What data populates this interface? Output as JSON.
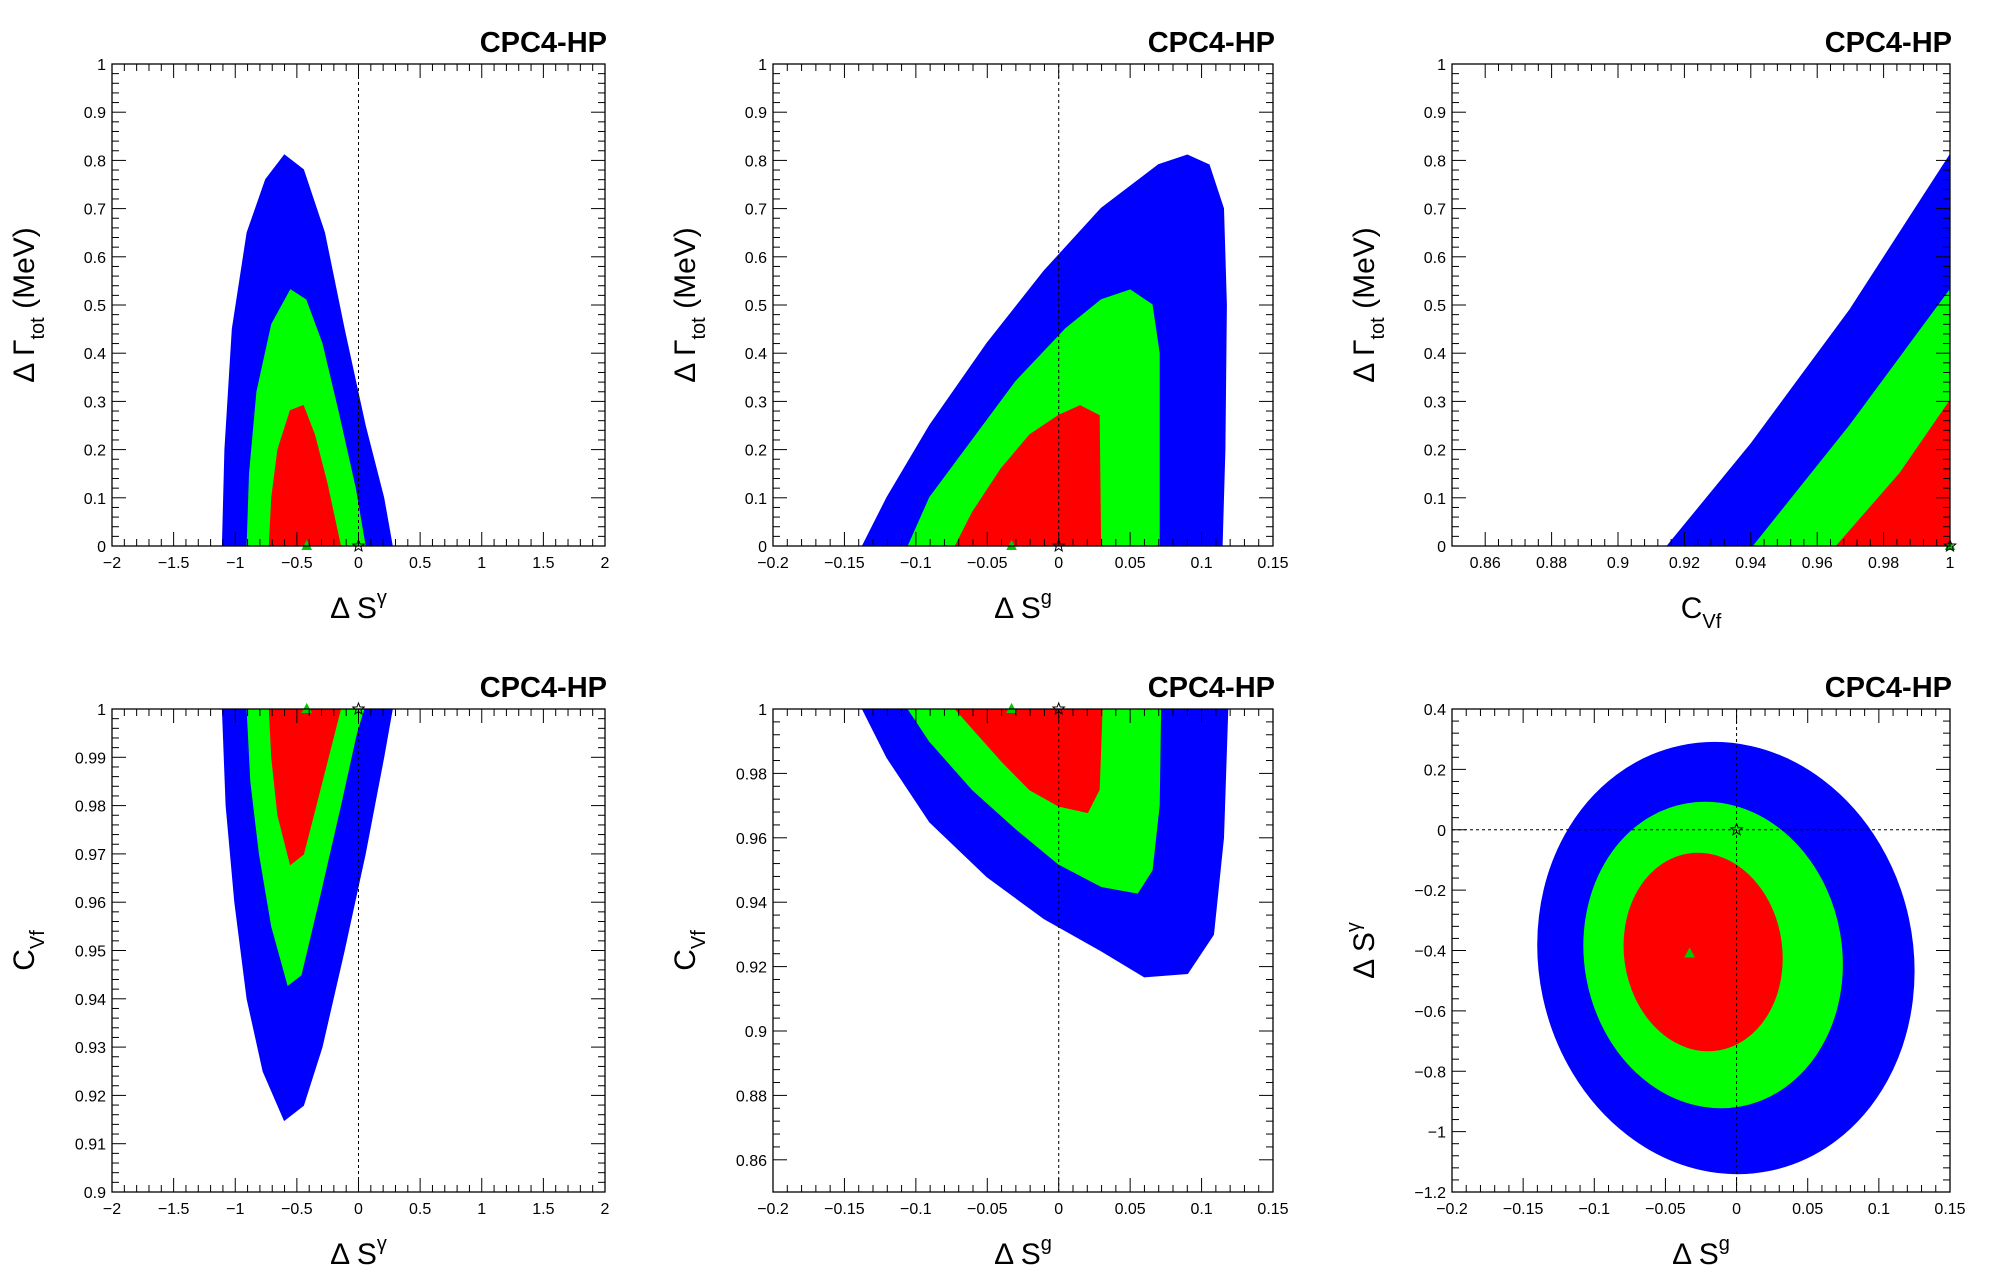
{
  "figure": {
    "tag": "CPC4-HP",
    "colors": {
      "blue": "#0000ff",
      "green": "#00ff00",
      "red": "#ff0000",
      "frame": "#000000",
      "marker": "#00cc00"
    }
  },
  "chart_data": [
    {
      "type": "scatter",
      "tag": "CPC4-HP",
      "xlabel": {
        "main": "Δ S",
        "sup": "γ",
        "sub": ""
      },
      "ylabel": {
        "main": "Δ Γ",
        "sub": "tot",
        "tail": " (MeV)"
      },
      "xlim": [
        -2,
        2
      ],
      "ylim": [
        0,
        1
      ],
      "xticks": [
        -2,
        -1.5,
        -1,
        -0.5,
        0,
        0.5,
        1,
        1.5,
        2
      ],
      "xtick_labels": [
        "−2",
        "−1.5",
        "−1",
        "−0.5",
        "0",
        "0.5",
        "1",
        "1.5",
        "2"
      ],
      "yticks": [
        0,
        0.1,
        0.2,
        0.3,
        0.4,
        0.5,
        0.6,
        0.7,
        0.8,
        0.9,
        1
      ],
      "ytick_labels": [
        "0",
        "0.1",
        "0.2",
        "0.3",
        "0.4",
        "0.5",
        "0.6",
        "0.7",
        "0.8",
        "0.9",
        "1"
      ],
      "reference_lines": {
        "x": [
          0
        ],
        "y": []
      },
      "regions": [
        {
          "color": "blue",
          "outline": [
            [
              -1.1,
              0
            ],
            [
              -1.08,
              0.2
            ],
            [
              -1.02,
              0.45
            ],
            [
              -0.9,
              0.65
            ],
            [
              -0.75,
              0.76
            ],
            [
              -0.6,
              0.81
            ],
            [
              -0.45,
              0.78
            ],
            [
              -0.28,
              0.65
            ],
            [
              -0.12,
              0.45
            ],
            [
              0.05,
              0.25
            ],
            [
              0.2,
              0.1
            ],
            [
              0.27,
              0
            ]
          ]
        },
        {
          "color": "green",
          "outline": [
            [
              -0.9,
              0
            ],
            [
              -0.88,
              0.15
            ],
            [
              -0.82,
              0.32
            ],
            [
              -0.7,
              0.46
            ],
            [
              -0.55,
              0.53
            ],
            [
              -0.43,
              0.51
            ],
            [
              -0.3,
              0.42
            ],
            [
              -0.17,
              0.28
            ],
            [
              -0.03,
              0.12
            ],
            [
              0.05,
              0
            ]
          ]
        },
        {
          "color": "red",
          "outline": [
            [
              -0.72,
              0
            ],
            [
              -0.7,
              0.1
            ],
            [
              -0.65,
              0.2
            ],
            [
              -0.55,
              0.28
            ],
            [
              -0.45,
              0.29
            ],
            [
              -0.36,
              0.23
            ],
            [
              -0.26,
              0.13
            ],
            [
              -0.15,
              0
            ]
          ]
        }
      ],
      "markers": [
        {
          "x": -0.42,
          "y": 0,
          "symbol": "triangle"
        },
        {
          "x": 0,
          "y": 0,
          "symbol": "star"
        }
      ]
    },
    {
      "type": "scatter",
      "tag": "CPC4-HP",
      "xlabel": {
        "main": "Δ S",
        "sup": "g",
        "sub": ""
      },
      "ylabel": {
        "main": "Δ Γ",
        "sub": "tot",
        "tail": " (MeV)"
      },
      "xlim": [
        -0.2,
        0.15
      ],
      "ylim": [
        0,
        1
      ],
      "xticks": [
        -0.2,
        -0.15,
        -0.1,
        -0.05,
        0,
        0.05,
        0.1,
        0.15
      ],
      "xtick_labels": [
        "−0.2",
        "−0.15",
        "−0.1",
        "−0.05",
        "0",
        "0.05",
        "0.1",
        "0.15"
      ],
      "yticks": [
        0,
        0.1,
        0.2,
        0.3,
        0.4,
        0.5,
        0.6,
        0.7,
        0.8,
        0.9,
        1
      ],
      "ytick_labels": [
        "0",
        "0.1",
        "0.2",
        "0.3",
        "0.4",
        "0.5",
        "0.6",
        "0.7",
        "0.8",
        "0.9",
        "1"
      ],
      "reference_lines": {
        "x": [
          0
        ],
        "y": []
      },
      "regions": [
        {
          "color": "blue",
          "outline": [
            [
              -0.137,
              0
            ],
            [
              -0.12,
              0.1
            ],
            [
              -0.09,
              0.25
            ],
            [
              -0.05,
              0.42
            ],
            [
              -0.01,
              0.57
            ],
            [
              0.03,
              0.7
            ],
            [
              0.07,
              0.79
            ],
            [
              0.09,
              0.81
            ],
            [
              0.105,
              0.79
            ],
            [
              0.115,
              0.7
            ],
            [
              0.117,
              0.5
            ],
            [
              0.116,
              0.2
            ],
            [
              0.114,
              0
            ]
          ]
        },
        {
          "color": "green",
          "outline": [
            [
              -0.105,
              0
            ],
            [
              -0.09,
              0.1
            ],
            [
              -0.06,
              0.22
            ],
            [
              -0.03,
              0.34
            ],
            [
              0.005,
              0.45
            ],
            [
              0.03,
              0.51
            ],
            [
              0.05,
              0.53
            ],
            [
              0.065,
              0.5
            ],
            [
              0.07,
              0.4
            ],
            [
              0.07,
              0
            ]
          ]
        },
        {
          "color": "red",
          "outline": [
            [
              -0.072,
              0
            ],
            [
              -0.06,
              0.07
            ],
            [
              -0.04,
              0.16
            ],
            [
              -0.02,
              0.23
            ],
            [
              0.0,
              0.27
            ],
            [
              0.015,
              0.29
            ],
            [
              0.028,
              0.27
            ],
            [
              0.029,
              0
            ]
          ]
        }
      ],
      "markers": [
        {
          "x": -0.033,
          "y": 0,
          "symbol": "triangle"
        },
        {
          "x": 0,
          "y": 0,
          "symbol": "star"
        }
      ]
    },
    {
      "type": "scatter",
      "tag": "CPC4-HP",
      "xlabel": {
        "main": "C",
        "sup": "",
        "sub": "Vf"
      },
      "ylabel": {
        "main": "Δ Γ",
        "sub": "tot",
        "tail": " (MeV)"
      },
      "xlim": [
        0.85,
        1
      ],
      "ylim": [
        0,
        1
      ],
      "xticks": [
        0.86,
        0.88,
        0.9,
        0.92,
        0.94,
        0.96,
        0.98,
        1
      ],
      "xtick_labels": [
        "0.86",
        "0.88",
        "0.9",
        "0.92",
        "0.94",
        "0.96",
        "0.98",
        "1"
      ],
      "yticks": [
        0,
        0.1,
        0.2,
        0.3,
        0.4,
        0.5,
        0.6,
        0.7,
        0.8,
        0.9,
        1
      ],
      "ytick_labels": [
        "0",
        "0.1",
        "0.2",
        "0.3",
        "0.4",
        "0.5",
        "0.6",
        "0.7",
        "0.8",
        "0.9",
        "1"
      ],
      "reference_lines": {
        "x": [],
        "y": []
      },
      "regions": [
        {
          "color": "blue",
          "outline": [
            [
              0.915,
              0
            ],
            [
              0.94,
              0.21
            ],
            [
              0.97,
              0.49
            ],
            [
              1.0,
              0.81
            ],
            [
              1.0,
              0
            ],
            [
              0.915,
              0
            ]
          ]
        },
        {
          "color": "green",
          "outline": [
            [
              0.941,
              0
            ],
            [
              0.97,
              0.25
            ],
            [
              1.0,
              0.53
            ],
            [
              1.0,
              0
            ],
            [
              0.941,
              0
            ]
          ]
        },
        {
          "color": "red",
          "outline": [
            [
              0.966,
              0
            ],
            [
              0.985,
              0.15
            ],
            [
              1.0,
              0.3
            ],
            [
              1.0,
              0
            ],
            [
              0.966,
              0
            ]
          ]
        }
      ],
      "markers": [
        {
          "x": 1,
          "y": 0,
          "symbol": "triangle"
        },
        {
          "x": 1,
          "y": 0,
          "symbol": "star"
        }
      ]
    },
    {
      "type": "scatter",
      "tag": "CPC4-HP",
      "xlabel": {
        "main": "Δ S",
        "sup": "γ",
        "sub": ""
      },
      "ylabel": {
        "main": "C",
        "sub": "Vf",
        "tail": ""
      },
      "xlim": [
        -2,
        2
      ],
      "ylim": [
        0.9,
        1
      ],
      "xticks": [
        -2,
        -1.5,
        -1,
        -0.5,
        0,
        0.5,
        1,
        1.5,
        2
      ],
      "xtick_labels": [
        "−2",
        "−1.5",
        "−1",
        "−0.5",
        "0",
        "0.5",
        "1",
        "1.5",
        "2"
      ],
      "yticks": [
        0.9,
        0.91,
        0.92,
        0.93,
        0.94,
        0.95,
        0.96,
        0.97,
        0.98,
        0.99,
        1
      ],
      "ytick_labels": [
        "0.9",
        "0.91",
        "0.92",
        "0.93",
        "0.94",
        "0.95",
        "0.96",
        "0.97",
        "0.98",
        "0.99",
        "1"
      ],
      "reference_lines": {
        "x": [
          0
        ],
        "y": [
          1
        ]
      },
      "regions": [
        {
          "color": "blue",
          "outline": [
            [
              -1.1,
              1.0
            ],
            [
              -1.07,
              0.98
            ],
            [
              -1.0,
              0.96
            ],
            [
              -0.9,
              0.94
            ],
            [
              -0.77,
              0.925
            ],
            [
              -0.6,
              0.915
            ],
            [
              -0.45,
              0.918
            ],
            [
              -0.3,
              0.93
            ],
            [
              -0.12,
              0.95
            ],
            [
              0.05,
              0.97
            ],
            [
              0.2,
              0.99
            ],
            [
              0.27,
              1.0
            ]
          ]
        },
        {
          "color": "green",
          "outline": [
            [
              -0.9,
              1.0
            ],
            [
              -0.87,
              0.985
            ],
            [
              -0.8,
              0.97
            ],
            [
              -0.7,
              0.955
            ],
            [
              -0.57,
              0.943
            ],
            [
              -0.47,
              0.945
            ],
            [
              -0.33,
              0.96
            ],
            [
              -0.15,
              0.98
            ],
            [
              -0.02,
              0.995
            ],
            [
              0.04,
              1.0
            ]
          ]
        },
        {
          "color": "red",
          "outline": [
            [
              -0.72,
              1.0
            ],
            [
              -0.7,
              0.99
            ],
            [
              -0.65,
              0.978
            ],
            [
              -0.55,
              0.968
            ],
            [
              -0.45,
              0.97
            ],
            [
              -0.35,
              0.98
            ],
            [
              -0.25,
              0.99
            ],
            [
              -0.15,
              1.0
            ]
          ]
        }
      ],
      "markers": [
        {
          "x": -0.42,
          "y": 1,
          "symbol": "triangle"
        },
        {
          "x": 0,
          "y": 1,
          "symbol": "star"
        }
      ]
    },
    {
      "type": "scatter",
      "tag": "CPC4-HP",
      "xlabel": {
        "main": "Δ S",
        "sup": "g",
        "sub": ""
      },
      "ylabel": {
        "main": "C",
        "sub": "Vf",
        "tail": ""
      },
      "xlim": [
        -0.2,
        0.15
      ],
      "ylim": [
        0.85,
        1
      ],
      "xticks": [
        -0.2,
        -0.15,
        -0.1,
        -0.05,
        0,
        0.05,
        0.1,
        0.15
      ],
      "xtick_labels": [
        "−0.2",
        "−0.15",
        "−0.1",
        "−0.05",
        "0",
        "0.05",
        "0.1",
        "0.15"
      ],
      "yticks": [
        0.86,
        0.88,
        0.9,
        0.92,
        0.94,
        0.96,
        0.98,
        1
      ],
      "ytick_labels": [
        "0.86",
        "0.88",
        "0.9",
        "0.92",
        "0.94",
        "0.96",
        "0.98",
        "1"
      ],
      "reference_lines": {
        "x": [
          0
        ],
        "y": [
          1
        ]
      },
      "regions": [
        {
          "color": "blue",
          "outline": [
            [
              -0.137,
              1.0
            ],
            [
              -0.12,
              0.985
            ],
            [
              -0.09,
              0.965
            ],
            [
              -0.05,
              0.948
            ],
            [
              -0.01,
              0.935
            ],
            [
              0.03,
              0.925
            ],
            [
              0.06,
              0.917
            ],
            [
              0.09,
              0.918
            ],
            [
              0.108,
              0.93
            ],
            [
              0.115,
              0.96
            ],
            [
              0.118,
              1.0
            ]
          ]
        },
        {
          "color": "green",
          "outline": [
            [
              -0.105,
              1.0
            ],
            [
              -0.09,
              0.99
            ],
            [
              -0.06,
              0.975
            ],
            [
              -0.03,
              0.963
            ],
            [
              0.0,
              0.952
            ],
            [
              0.03,
              0.945
            ],
            [
              0.055,
              0.943
            ],
            [
              0.065,
              0.95
            ],
            [
              0.07,
              0.97
            ],
            [
              0.071,
              1.0
            ]
          ]
        },
        {
          "color": "red",
          "outline": [
            [
              -0.072,
              1.0
            ],
            [
              -0.06,
              0.994
            ],
            [
              -0.04,
              0.984
            ],
            [
              -0.02,
              0.975
            ],
            [
              0.0,
              0.97
            ],
            [
              0.02,
              0.968
            ],
            [
              0.028,
              0.975
            ],
            [
              0.03,
              1.0
            ]
          ]
        }
      ],
      "markers": [
        {
          "x": -0.033,
          "y": 1,
          "symbol": "triangle"
        },
        {
          "x": 0,
          "y": 1,
          "symbol": "star"
        }
      ]
    },
    {
      "type": "scatter",
      "tag": "CPC4-HP",
      "xlabel": {
        "main": "Δ S",
        "sup": "g",
        "sub": ""
      },
      "ylabel": {
        "main": "Δ S",
        "sup": "γ",
        "tail": ""
      },
      "xlim": [
        -0.2,
        0.15
      ],
      "ylim": [
        -1.2,
        0.4
      ],
      "xticks": [
        -0.2,
        -0.15,
        -0.1,
        -0.05,
        0,
        0.05,
        0.1,
        0.15
      ],
      "xtick_labels": [
        "−0.2",
        "−0.15",
        "−0.1",
        "−0.05",
        "0",
        "0.05",
        "0.1",
        "0.15"
      ],
      "yticks": [
        -1.2,
        -1,
        -0.8,
        -0.6,
        -0.4,
        -0.2,
        0,
        0.2,
        0.4
      ],
      "ytick_labels": [
        "−1.2",
        "−1",
        "−0.8",
        "−0.6",
        "−0.4",
        "−0.2",
        "0",
        "0.2",
        "0.4"
      ],
      "reference_lines": {
        "x": [
          0
        ],
        "y": [
          0
        ]
      },
      "regions": [
        {
          "color": "blue",
          "ellipse": {
            "cx": -0.0075,
            "cy": -0.425,
            "rx": 0.1295,
            "ry": 0.71,
            "rotation_deg": -12
          }
        },
        {
          "color": "green",
          "ellipse": {
            "cx": -0.0165,
            "cy": -0.415,
            "rx": 0.0885,
            "ry": 0.5,
            "rotation_deg": -10
          }
        },
        {
          "color": "red",
          "ellipse": {
            "cx": -0.0235,
            "cy": -0.405,
            "rx": 0.0535,
            "ry": 0.32,
            "rotation_deg": -8
          }
        }
      ],
      "markers": [
        {
          "x": -0.033,
          "y": -0.41,
          "symbol": "triangle"
        },
        {
          "x": 0,
          "y": 0,
          "symbol": "star"
        }
      ]
    }
  ]
}
